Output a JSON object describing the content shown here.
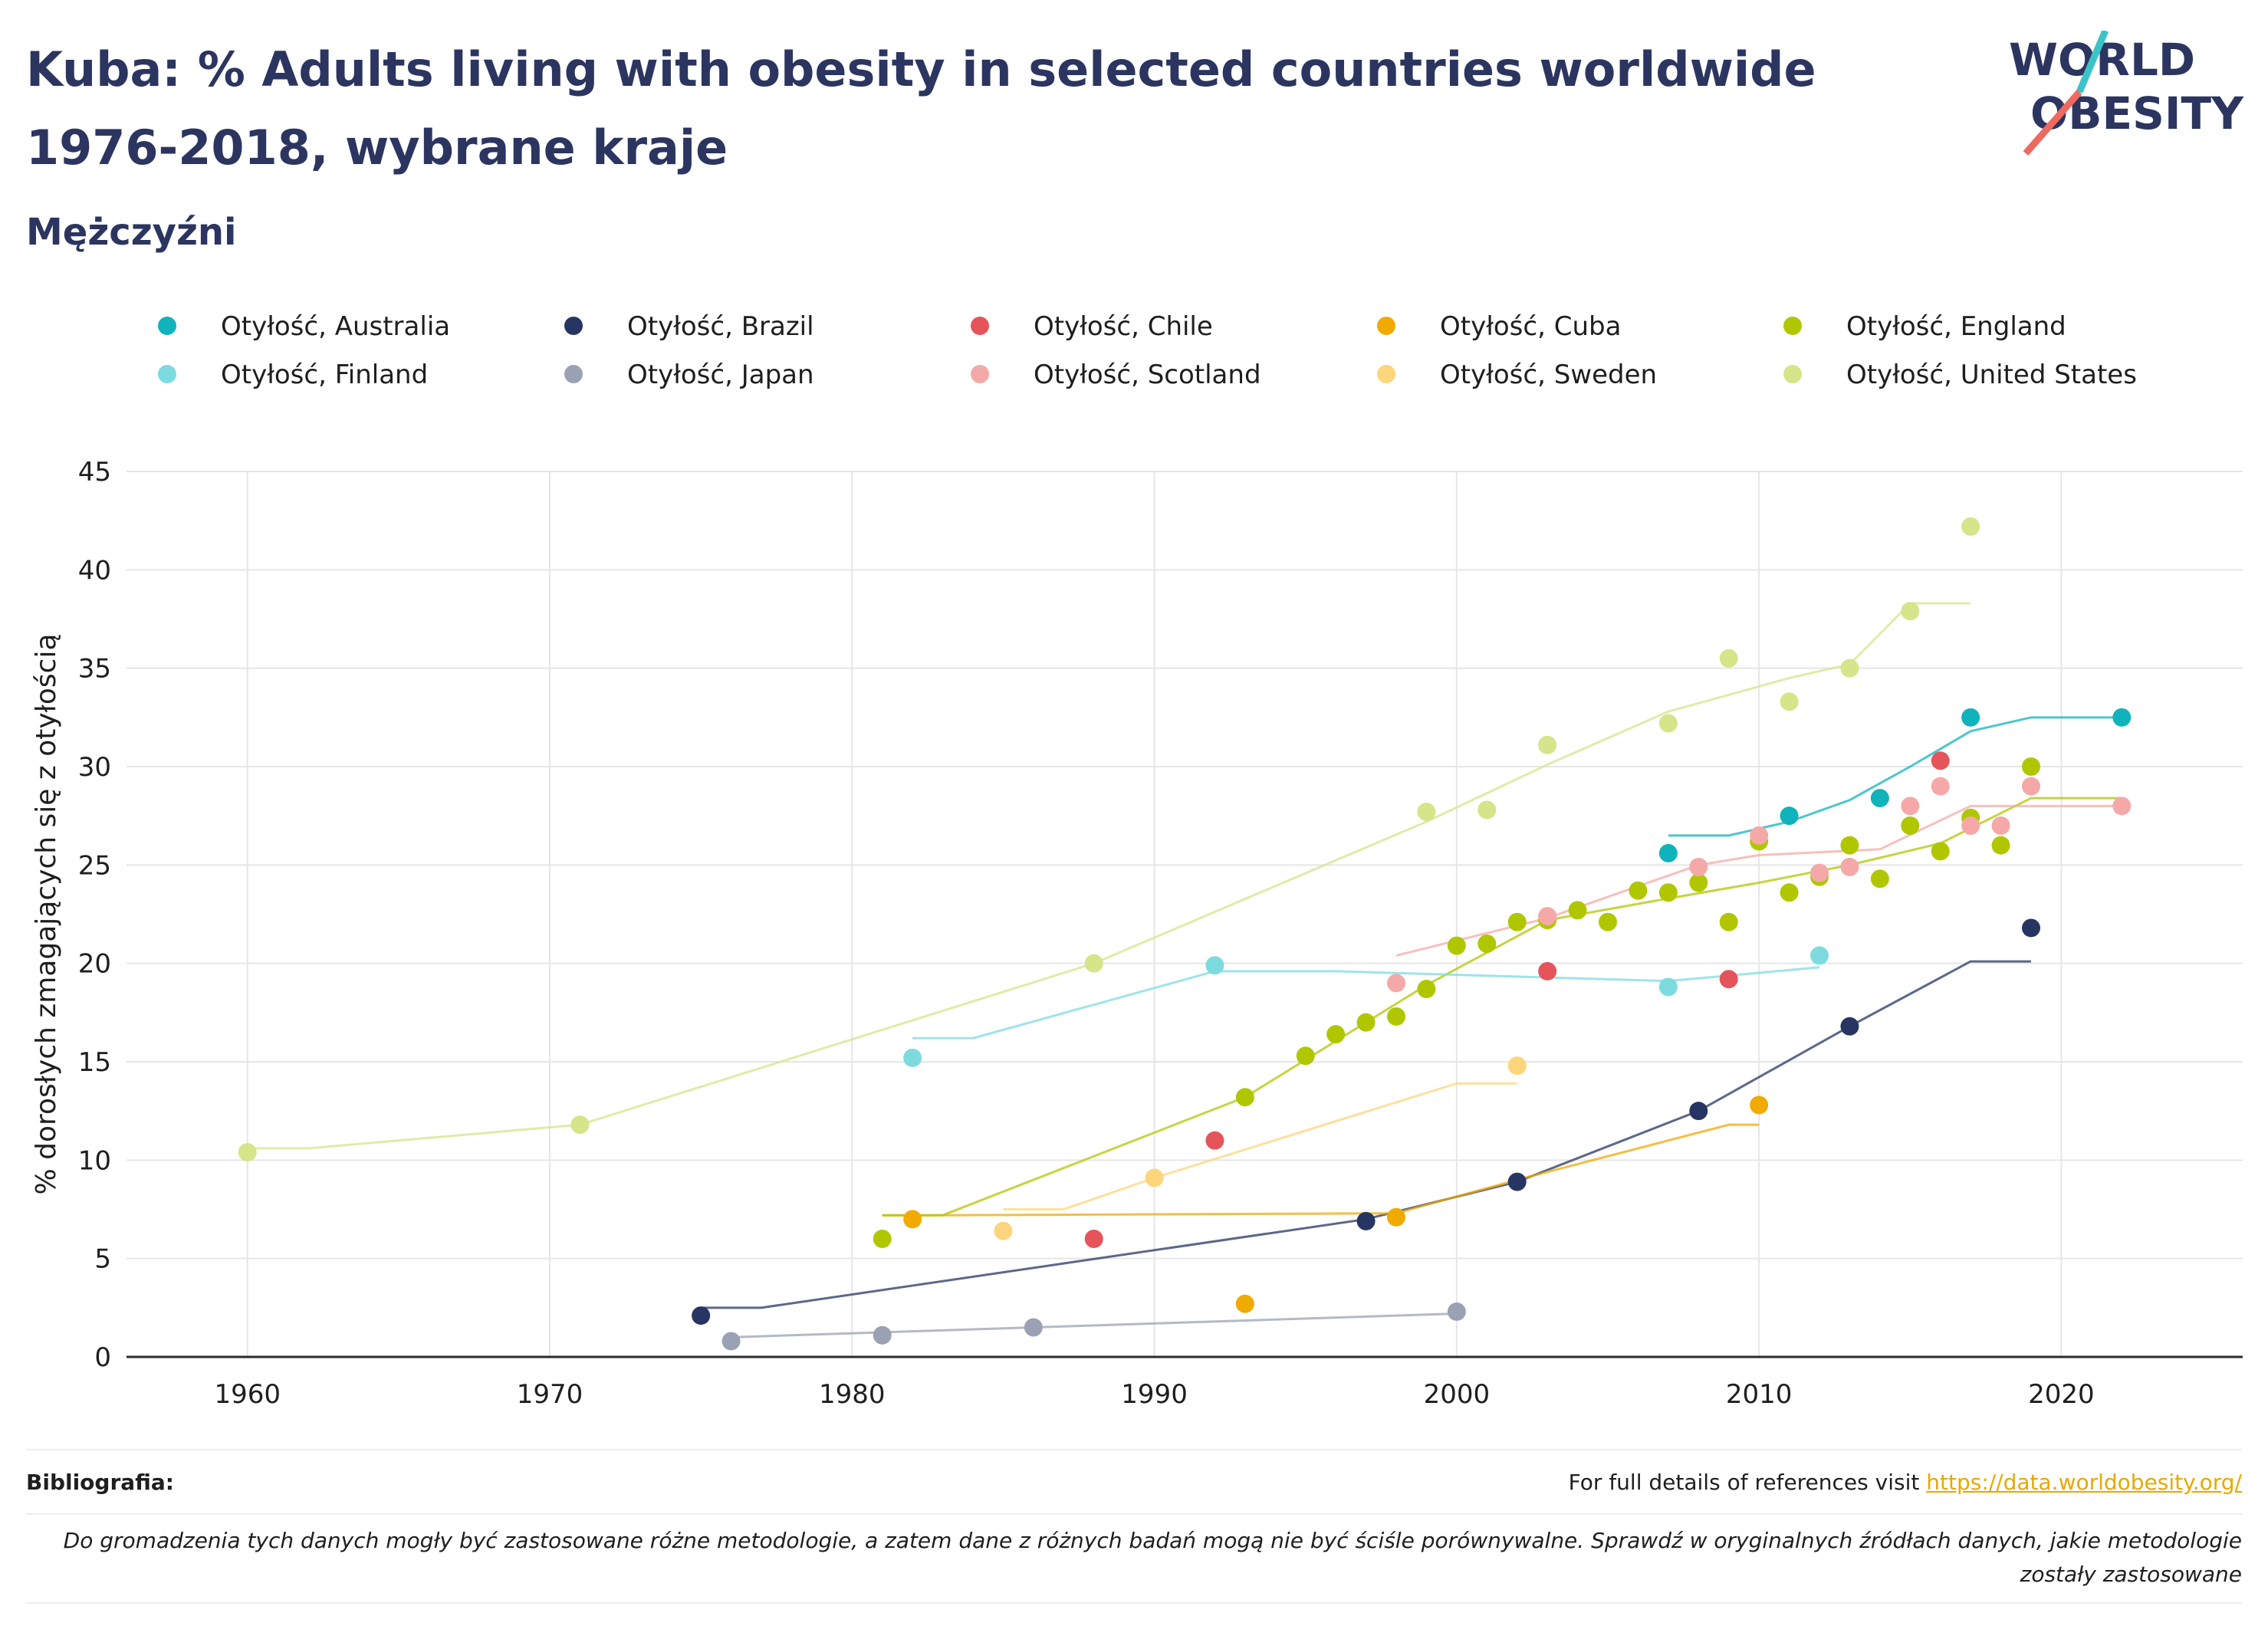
{
  "header": {
    "title": "Kuba: % Adults living with obesity in selected countries worldwide 1976-2018, wybrane kraje",
    "subtitle": "Mężczyźni",
    "logo_line1": "WORLD",
    "logo_line2": "OBESITY"
  },
  "footer": {
    "bibliography_label": "Bibliografia:",
    "references_text": "For full details of references visit",
    "references_link": "https://data.worldobesity.org/",
    "note": "Do gromadzenia tych danych mogły być zastosowane różne metodologie, a zatem dane z różnych badań mogą nie być ściśle porównywalne. Sprawdź w oryginalnych źródłach danych, jakie metodologie zostały zastosowane"
  },
  "colors": {
    "text": "#2b3560",
    "logo_teal": "#3cc3c7",
    "logo_red": "#ee6a5f",
    "link": "#e8a800"
  },
  "chart_data": {
    "type": "scatter",
    "ylabel": "% dorosłych zmagających się z otyłością",
    "xlabel": "",
    "xlim": [
      1956,
      2026
    ],
    "ylim": [
      0,
      45
    ],
    "xticks": [
      1960,
      1970,
      1980,
      1990,
      2000,
      2010,
      2020
    ],
    "yticks": [
      0,
      5,
      10,
      15,
      20,
      25,
      30,
      35,
      40,
      45
    ],
    "grid": true,
    "legend_position": "top",
    "series": [
      {
        "name": "Otyłość, Australia",
        "color": "#10b3bb",
        "points": [
          [
            2007,
            25.6
          ],
          [
            2011,
            27.5
          ],
          [
            2014,
            28.4
          ],
          [
            2017,
            32.5
          ],
          [
            2022,
            32.5
          ]
        ],
        "trend": [
          [
            2007,
            26.5
          ],
          [
            2009,
            26.5
          ],
          [
            2011,
            27.2
          ],
          [
            2013,
            28.3
          ],
          [
            2015,
            30.0
          ],
          [
            2017,
            31.8
          ],
          [
            2019,
            32.5
          ],
          [
            2022,
            32.5
          ]
        ]
      },
      {
        "name": "Otyłość, Brazil",
        "color": "#263561",
        "points": [
          [
            1975,
            2.1
          ],
          [
            1997,
            6.9
          ],
          [
            2002,
            8.9
          ],
          [
            2008,
            12.5
          ],
          [
            2013,
            16.8
          ],
          [
            2019,
            21.8
          ]
        ],
        "trend": [
          [
            1975,
            2.5
          ],
          [
            1977,
            2.5
          ],
          [
            1997,
            7.0
          ],
          [
            2002,
            8.9
          ],
          [
            2008,
            12.5
          ],
          [
            2013,
            16.8
          ],
          [
            2017,
            20.1
          ],
          [
            2019,
            20.1
          ]
        ]
      },
      {
        "name": "Otyłość, Chile",
        "color": "#e5545a",
        "points": [
          [
            1988,
            6.0
          ],
          [
            1992,
            11.0
          ],
          [
            2003,
            19.6
          ],
          [
            2009,
            19.2
          ],
          [
            2016,
            30.3
          ]
        ],
        "trend": []
      },
      {
        "name": "Otyłość, Cuba",
        "color": "#f0aa00",
        "points": [
          [
            1982,
            7.0
          ],
          [
            1993,
            2.7
          ],
          [
            1998,
            7.1
          ],
          [
            2010,
            12.8
          ]
        ],
        "trend": [
          [
            1981,
            7.2
          ],
          [
            1983,
            7.2
          ],
          [
            1998,
            7.3
          ],
          [
            2002,
            9.0
          ],
          [
            2009,
            11.8
          ],
          [
            2010,
            11.8
          ]
        ]
      },
      {
        "name": "Otyłość, England",
        "color": "#b0c700",
        "points": [
          [
            1981,
            6.0
          ],
          [
            1993,
            13.2
          ],
          [
            1995,
            15.3
          ],
          [
            1996,
            16.4
          ],
          [
            1997,
            17.0
          ],
          [
            1998,
            17.3
          ],
          [
            1999,
            18.7
          ],
          [
            2000,
            20.9
          ],
          [
            2001,
            21.0
          ],
          [
            2002,
            22.1
          ],
          [
            2003,
            22.2
          ],
          [
            2004,
            22.7
          ],
          [
            2005,
            22.1
          ],
          [
            2006,
            23.7
          ],
          [
            2007,
            23.6
          ],
          [
            2008,
            24.1
          ],
          [
            2009,
            22.1
          ],
          [
            2010,
            26.2
          ],
          [
            2011,
            23.6
          ],
          [
            2012,
            24.4
          ],
          [
            2013,
            26.0
          ],
          [
            2014,
            24.3
          ],
          [
            2015,
            27.0
          ],
          [
            2016,
            25.7
          ],
          [
            2017,
            27.4
          ],
          [
            2018,
            26.0
          ],
          [
            2019,
            30.0
          ]
        ],
        "trend": [
          [
            1981,
            7.2
          ],
          [
            1983,
            7.2
          ],
          [
            1993,
            13.2
          ],
          [
            1999,
            18.9
          ],
          [
            2003,
            22.2
          ],
          [
            2007,
            23.3
          ],
          [
            2010,
            24.1
          ],
          [
            2013,
            25.0
          ],
          [
            2016,
            26.1
          ],
          [
            2019,
            28.4
          ],
          [
            2022,
            28.4
          ]
        ]
      },
      {
        "name": "Otyłość, Finland",
        "color": "#7ddbe0",
        "points": [
          [
            1982,
            15.2
          ],
          [
            1992,
            19.9
          ],
          [
            2007,
            18.8
          ],
          [
            2012,
            20.4
          ]
        ],
        "trend": [
          [
            1982,
            16.2
          ],
          [
            1984,
            16.2
          ],
          [
            1992,
            19.6
          ],
          [
            1996,
            19.6
          ],
          [
            2007,
            19.1
          ],
          [
            2012,
            19.8
          ]
        ]
      },
      {
        "name": "Otyłość, Japan",
        "color": "#9ba1b4",
        "points": [
          [
            1976,
            0.8
          ],
          [
            1981,
            1.1
          ],
          [
            1986,
            1.5
          ],
          [
            2000,
            2.3
          ]
        ],
        "trend": [
          [
            1976,
            1.0
          ],
          [
            1986,
            1.5
          ],
          [
            2000,
            2.2
          ]
        ]
      },
      {
        "name": "Otyłość, Scotland",
        "color": "#f4a9a8",
        "points": [
          [
            1998,
            19.0
          ],
          [
            2003,
            22.4
          ],
          [
            2008,
            24.9
          ],
          [
            2010,
            26.5
          ],
          [
            2012,
            24.6
          ],
          [
            2013,
            24.9
          ],
          [
            2015,
            28.0
          ],
          [
            2016,
            29.0
          ],
          [
            2017,
            27.0
          ],
          [
            2018,
            27.0
          ],
          [
            2019,
            29.0
          ],
          [
            2022,
            28.0
          ]
        ],
        "trend": [
          [
            1998,
            20.4
          ],
          [
            2003,
            22.3
          ],
          [
            2008,
            25.0
          ],
          [
            2010,
            25.5
          ],
          [
            2014,
            25.8
          ],
          [
            2017,
            28.0
          ],
          [
            2022,
            28.0
          ]
        ]
      },
      {
        "name": "Otyłość, Sweden",
        "color": "#fdd57c",
        "points": [
          [
            1985,
            6.4
          ],
          [
            1990,
            9.1
          ],
          [
            2002,
            14.8
          ]
        ],
        "trend": [
          [
            1985,
            7.5
          ],
          [
            1987,
            7.5
          ],
          [
            1990,
            9.1
          ],
          [
            2000,
            13.9
          ],
          [
            2002,
            13.9
          ]
        ]
      },
      {
        "name": "Otyłość, United States",
        "color": "#d6e48a",
        "points": [
          [
            1960,
            10.4
          ],
          [
            1971,
            11.8
          ],
          [
            1988,
            20.0
          ],
          [
            1999,
            27.7
          ],
          [
            2001,
            27.8
          ],
          [
            2003,
            31.1
          ],
          [
            2007,
            32.2
          ],
          [
            2009,
            35.5
          ],
          [
            2011,
            33.3
          ],
          [
            2013,
            35.0
          ],
          [
            2015,
            37.9
          ],
          [
            2017,
            42.2
          ]
        ],
        "trend": [
          [
            1960,
            10.6
          ],
          [
            1962,
            10.6
          ],
          [
            1971,
            11.8
          ],
          [
            1988,
            20.0
          ],
          [
            1999,
            27.2
          ],
          [
            2003,
            30.1
          ],
          [
            2007,
            32.8
          ],
          [
            2011,
            34.5
          ],
          [
            2013,
            35.2
          ],
          [
            2015,
            38.3
          ],
          [
            2017,
            38.3
          ]
        ]
      }
    ]
  }
}
